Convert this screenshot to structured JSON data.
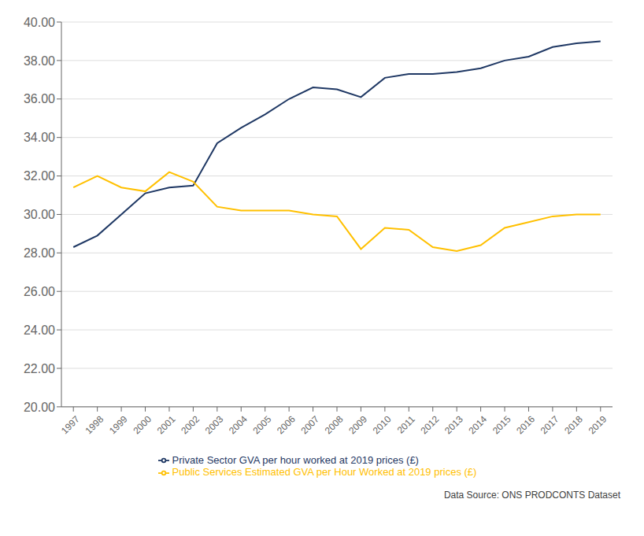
{
  "chart_data": {
    "type": "line",
    "x": [
      1997,
      1998,
      1999,
      2000,
      2001,
      2002,
      2003,
      2004,
      2005,
      2006,
      2007,
      2008,
      2009,
      2010,
      2011,
      2012,
      2013,
      2014,
      2015,
      2016,
      2017,
      2018,
      2019
    ],
    "series": [
      {
        "name": "Private Sector GVA per hour worked at 2019 prices (£)",
        "color": "#1F3864",
        "values": [
          28.3,
          28.9,
          30.0,
          31.1,
          31.4,
          31.5,
          33.7,
          34.5,
          35.2,
          36.0,
          36.6,
          36.5,
          36.1,
          37.1,
          37.3,
          37.3,
          37.4,
          37.6,
          38.0,
          38.2,
          38.7,
          38.9,
          39.0
        ]
      },
      {
        "name": "Public Services Estimated GVA per Hour Worked at 2019 prices (£)",
        "color": "#FFC000",
        "values": [
          31.4,
          32.0,
          31.4,
          31.2,
          32.2,
          31.7,
          30.4,
          30.2,
          30.2,
          30.2,
          30.0,
          29.9,
          28.2,
          29.3,
          29.2,
          28.3,
          28.1,
          28.4,
          29.3,
          29.6,
          29.9,
          30.0,
          30.0
        ]
      }
    ],
    "xlim": [
      1996.5,
      2019.5
    ],
    "xticks": [
      1997,
      1998,
      1999,
      2000,
      2001,
      2002,
      2003,
      2004,
      2005,
      2006,
      2007,
      2008,
      2009,
      2010,
      2011,
      2012,
      2013,
      2014,
      2015,
      2016,
      2017,
      2018,
      2019
    ],
    "ylim": [
      20.0,
      40.0
    ],
    "yticks": [
      {
        "value": 20,
        "label": "20.00"
      },
      {
        "value": 22,
        "label": "22.00"
      },
      {
        "value": 24,
        "label": "24.00"
      },
      {
        "value": 26,
        "label": "26.00"
      },
      {
        "value": 28,
        "label": "28.00"
      },
      {
        "value": 30,
        "label": "30.00"
      },
      {
        "value": 32,
        "label": "32.00"
      },
      {
        "value": 34,
        "label": "34.00"
      },
      {
        "value": 36,
        "label": "36.00"
      },
      {
        "value": 38,
        "label": "38.00"
      },
      {
        "value": 40,
        "label": "40.00"
      }
    ],
    "grid": true,
    "legend": "bottom",
    "annotations": [
      "Data Source: ONS PRODCONTS Dataset"
    ]
  }
}
